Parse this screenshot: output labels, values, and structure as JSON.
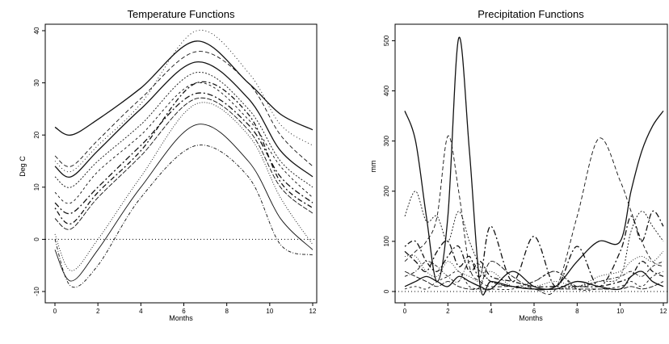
{
  "chart_data": [
    {
      "type": "line",
      "title": "Temperature Functions",
      "xlabel": "Months",
      "ylabel": "Deg C",
      "xlim": [
        0,
        12
      ],
      "ylim": [
        -10,
        40
      ],
      "x_ticks": [
        0,
        2,
        4,
        6,
        8,
        10,
        12
      ],
      "y_ticks": [
        -10,
        0,
        10,
        20,
        30,
        40
      ],
      "reference_line": {
        "y": 0,
        "style": "dotted"
      },
      "grid": false,
      "legend": "none",
      "x": [
        0,
        0.75,
        2,
        4,
        6.6,
        9,
        10.5,
        12
      ],
      "series": [
        {
          "values": [
            21.5,
            20,
            23,
            29,
            38,
            30,
            24,
            21
          ]
        },
        {
          "values": [
            16,
            14,
            19,
            27,
            36,
            30,
            20,
            14
          ]
        },
        {
          "values": [
            12,
            10,
            15,
            22,
            32,
            25,
            15,
            10
          ]
        },
        {
          "values": [
            7,
            5,
            10,
            18,
            28,
            22,
            12,
            7
          ]
        },
        {
          "values": [
            1,
            -6,
            0,
            12,
            26,
            20,
            8,
            -1
          ]
        },
        {
          "values": [
            0,
            -9,
            -5,
            8,
            18,
            12,
            -1,
            -3
          ]
        },
        {
          "values": [
            14,
            12,
            17,
            25,
            34,
            27,
            17,
            12
          ]
        },
        {
          "values": [
            9,
            7,
            13,
            20,
            30,
            23,
            14,
            8
          ]
        },
        {
          "values": [
            4,
            2,
            8,
            16,
            27,
            21,
            10,
            5
          ]
        },
        {
          "values": [
            6,
            3,
            9,
            17,
            30,
            24,
            11,
            6
          ]
        },
        {
          "values": [
            -2,
            -8,
            -2,
            10,
            22,
            15,
            4,
            -2
          ]
        },
        {
          "values": [
            15,
            13,
            18,
            26,
            40,
            32,
            22,
            18
          ]
        }
      ]
    },
    {
      "type": "line",
      "title": "Precipitation Functions",
      "xlabel": "Months",
      "ylabel": "mm",
      "xlim": [
        0,
        12
      ],
      "ylim": [
        0,
        520
      ],
      "x_ticks": [
        0,
        2,
        4,
        6,
        8,
        10,
        12
      ],
      "y_ticks": [
        0,
        100,
        200,
        300,
        400,
        500
      ],
      "reference_line": {
        "y": 0,
        "style": "dotted"
      },
      "grid": false,
      "legend": "none",
      "x": [
        0,
        0.5,
        1,
        1.5,
        2,
        2.5,
        3,
        3.5,
        4,
        5,
        6,
        7,
        8,
        9,
        10,
        10.5,
        11,
        11.5,
        12
      ],
      "series": [
        {
          "values": [
            360,
            300,
            150,
            20,
            150,
            505,
            280,
            10,
            20,
            10,
            5,
            10,
            60,
            100,
            100,
            200,
            280,
            330,
            360
          ]
        },
        {
          "values": [
            60,
            80,
            100,
            150,
            310,
            200,
            50,
            20,
            10,
            10,
            5,
            5,
            150,
            305,
            220,
            160,
            100,
            60,
            50
          ]
        },
        {
          "values": [
            150,
            200,
            140,
            150,
            100,
            160,
            100,
            50,
            20,
            10,
            5,
            5,
            10,
            20,
            30,
            120,
            160,
            130,
            100
          ]
        },
        {
          "values": [
            80,
            60,
            40,
            80,
            100,
            50,
            70,
            30,
            130,
            20,
            110,
            10,
            90,
            10,
            80,
            150,
            100,
            160,
            130
          ]
        },
        {
          "values": [
            70,
            70,
            40,
            30,
            60,
            40,
            30,
            20,
            40,
            10,
            10,
            20,
            10,
            30,
            40,
            60,
            70,
            60,
            80
          ]
        },
        {
          "values": [
            30,
            40,
            60,
            50,
            30,
            20,
            60,
            40,
            20,
            10,
            20,
            40,
            10,
            20,
            30,
            40,
            30,
            50,
            60
          ]
        },
        {
          "values": [
            10,
            20,
            30,
            20,
            10,
            30,
            20,
            10,
            5,
            40,
            10,
            5,
            20,
            10,
            5,
            30,
            40,
            20,
            10
          ]
        },
        {
          "values": [
            5,
            10,
            5,
            20,
            30,
            40,
            10,
            5,
            5,
            5,
            20,
            40,
            5,
            5,
            10,
            20,
            10,
            30,
            40
          ]
        },
        {
          "values": [
            40,
            30,
            20,
            10,
            20,
            10,
            5,
            10,
            60,
            30,
            5,
            5,
            5,
            5,
            5,
            10,
            5,
            10,
            20
          ]
        },
        {
          "values": [
            90,
            100,
            60,
            40,
            70,
            90,
            40,
            60,
            30,
            20,
            10,
            10,
            10,
            10,
            20,
            30,
            60,
            40,
            30
          ]
        }
      ]
    }
  ]
}
